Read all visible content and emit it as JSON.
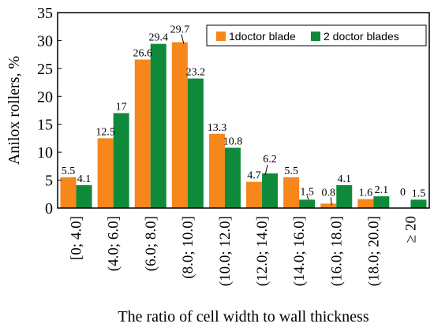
{
  "chart_data": {
    "type": "bar",
    "categories": [
      "[0; 4.0]",
      "(4.0; 6.0]",
      "(6.0; 8.0]",
      "(8.0; 10.0]",
      "(10.0; 12.0]",
      "(12.0; 14.0]",
      "(14.0; 16.0]",
      "(16.0; 18.0]",
      "(18.0; 20.0]",
      "≥ 20"
    ],
    "series": [
      {
        "name": "1doctor blade",
        "values": [
          5.5,
          12.5,
          26.6,
          29.7,
          13.3,
          4.7,
          5.5,
          0.8,
          1.6,
          0
        ],
        "color": "#F7861B"
      },
      {
        "name": "2 doctor blades",
        "values": [
          4.1,
          17,
          29.4,
          23.2,
          10.8,
          6.2,
          1.5,
          4.1,
          2.1,
          1.5
        ],
        "color": "#0E8A3A"
      }
    ],
    "data_labels": {
      "1doctor blade": [
        "5.5",
        "12.5",
        "26.6",
        "29.7",
        "13.3",
        "4.7",
        "5.5",
        "0.8",
        "1.6",
        "0"
      ],
      "2 doctor blades": [
        "4.1",
        "17",
        "29.4",
        "23.2",
        "10.8",
        "6.2",
        "1.5",
        "4.1",
        "2.1",
        "1.5"
      ]
    },
    "xlabel": "The ratio of cell width to wall thickness",
    "ylabel": "Anilox rollers, %",
    "ylim": [
      0,
      35
    ],
    "yticks": [
      0,
      5,
      10,
      15,
      20,
      25,
      30,
      35
    ],
    "grid": false,
    "legend_position": "top-right"
  }
}
